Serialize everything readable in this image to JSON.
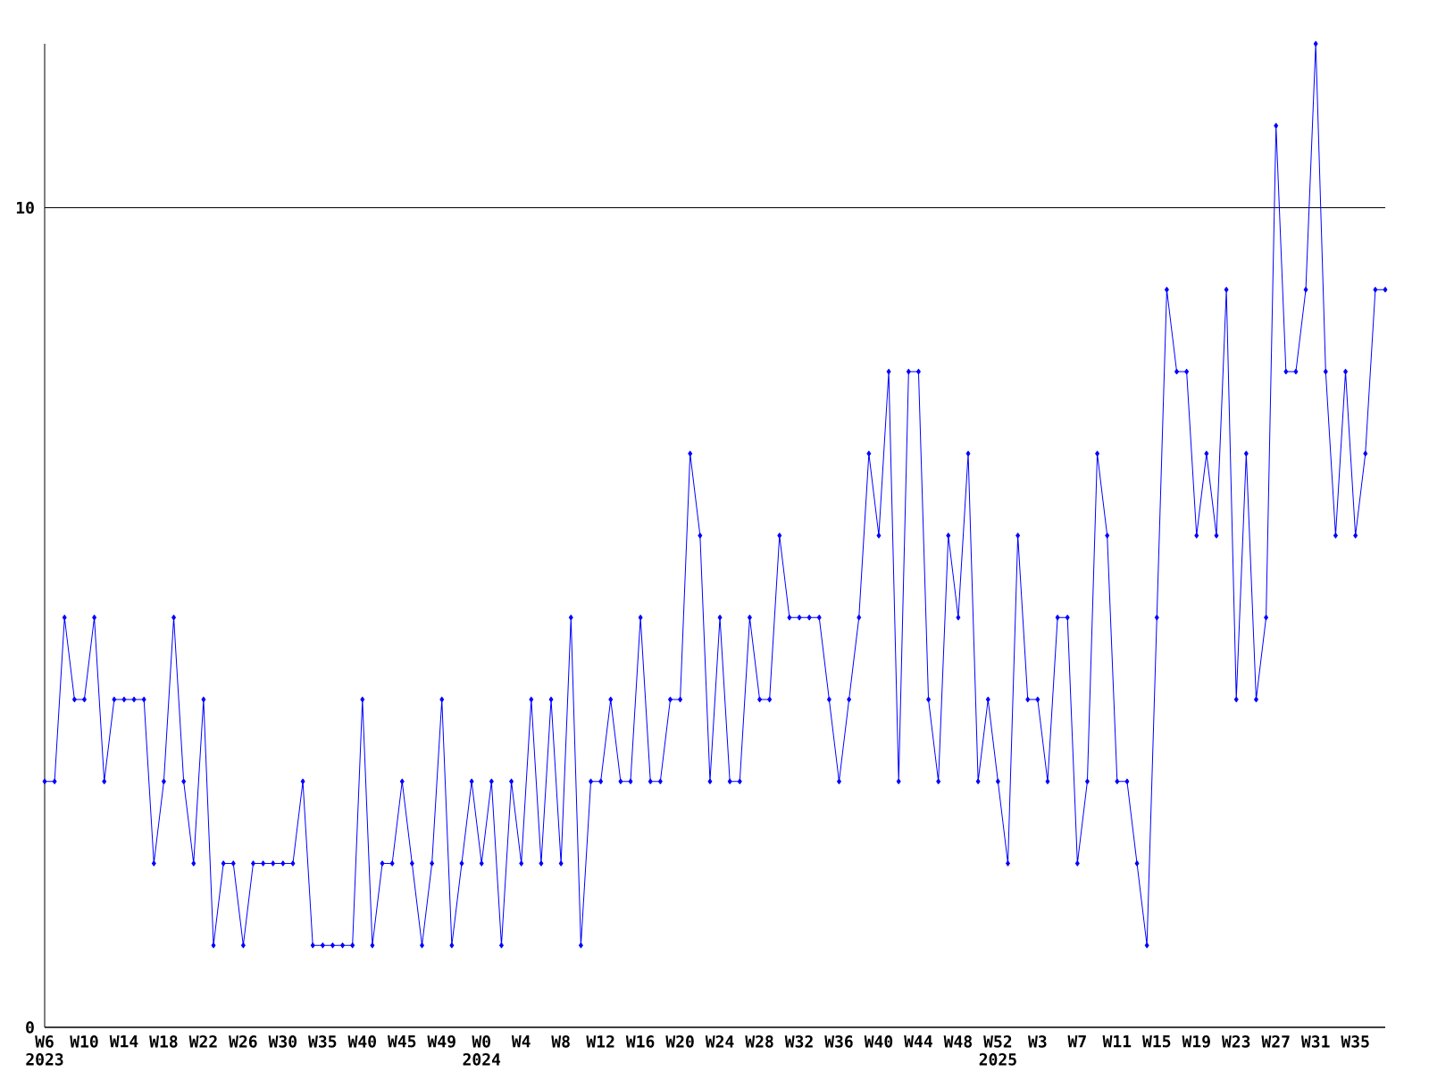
{
  "chart_data": {
    "type": "line",
    "categories": [
      "W6 2023",
      null,
      null,
      null,
      "W10",
      null,
      null,
      null,
      "W14",
      null,
      null,
      null,
      "W18",
      null,
      null,
      null,
      "W22",
      null,
      null,
      null,
      "W26",
      null,
      null,
      null,
      "W30",
      null,
      null,
      null,
      "W35",
      null,
      null,
      null,
      "W40",
      null,
      null,
      null,
      "W45",
      null,
      null,
      null,
      "W49",
      null,
      null,
      null,
      "W0 2024",
      null,
      null,
      null,
      "W4",
      null,
      null,
      null,
      "W8",
      null,
      null,
      null,
      "W12",
      null,
      null,
      null,
      "W16",
      null,
      null,
      null,
      "W20",
      null,
      null,
      null,
      "W24",
      null,
      null,
      null,
      "W28",
      null,
      null,
      null,
      "W32",
      null,
      null,
      null,
      "W36",
      null,
      null,
      null,
      "W40",
      null,
      null,
      null,
      "W44",
      null,
      null,
      null,
      "W48",
      null,
      null,
      null,
      "W52 2025",
      null,
      null,
      null,
      "W3",
      null,
      null,
      null,
      "W7",
      null,
      null,
      null,
      "W11",
      null,
      null,
      null,
      "W15",
      null,
      null,
      null,
      "W19",
      null,
      null,
      null,
      "W23",
      null,
      null,
      null,
      "W27",
      null,
      null,
      null,
      "W31",
      null,
      null,
      null,
      "W35",
      null,
      null,
      null
    ],
    "values": [
      3,
      3,
      5,
      4,
      4,
      5,
      3,
      4,
      4,
      4,
      4,
      2,
      3,
      5,
      3,
      2,
      4,
      1,
      2,
      2,
      1,
      2,
      2,
      2,
      2,
      2,
      3,
      1,
      1,
      1,
      1,
      1,
      4,
      1,
      2,
      2,
      3,
      2,
      1,
      2,
      4,
      1,
      2,
      3,
      2,
      3,
      1,
      3,
      2,
      4,
      2,
      4,
      2,
      5,
      1,
      3,
      3,
      4,
      3,
      3,
      5,
      3,
      3,
      4,
      4,
      7,
      6,
      3,
      5,
      3,
      3,
      5,
      4,
      4,
      6,
      5,
      5,
      5,
      5,
      4,
      3,
      4,
      5,
      7,
      6,
      8,
      3,
      8,
      8,
      4,
      3,
      6,
      5,
      7,
      3,
      4,
      3,
      2,
      6,
      4,
      4,
      3,
      5,
      5,
      2,
      3,
      7,
      6,
      3,
      3,
      2,
      1,
      5,
      9,
      8,
      8,
      6,
      7,
      6,
      9,
      4,
      7,
      4,
      5,
      11,
      8,
      8,
      9,
      12,
      8,
      6,
      8,
      6,
      7,
      9,
      9
    ],
    "color": "#0000ff",
    "marker": "diamond",
    "line_style": "solid",
    "ylim": [
      0,
      12
    ],
    "yticks": [
      0,
      10
    ],
    "grid": "y"
  }
}
